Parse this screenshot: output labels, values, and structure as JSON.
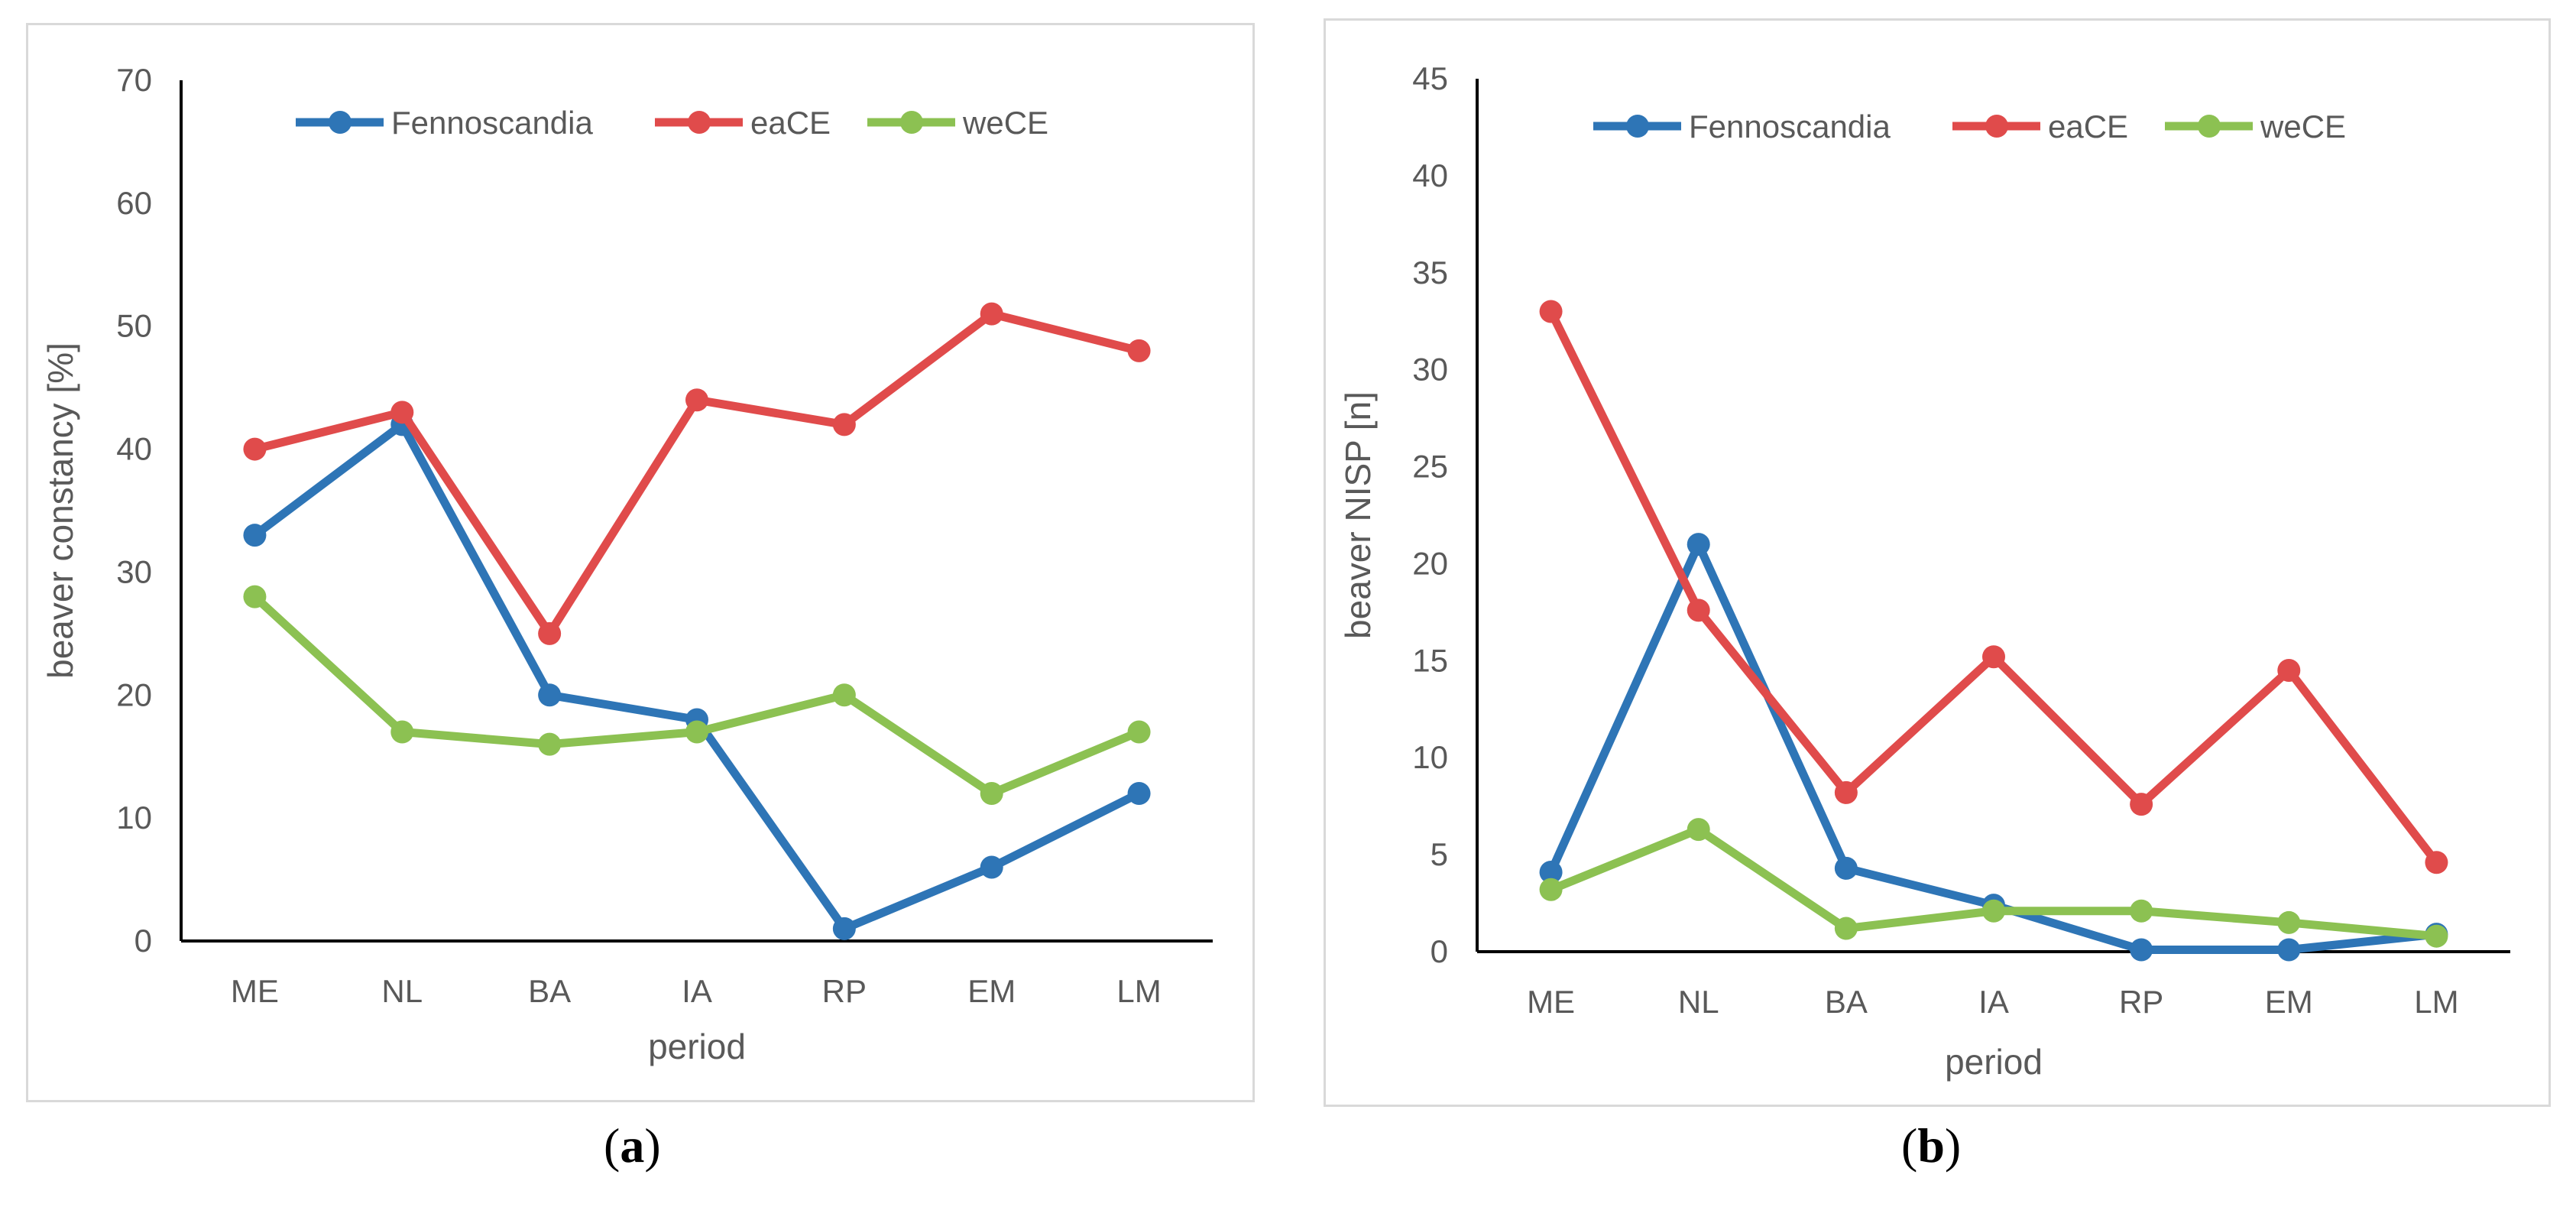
{
  "chart_data": [
    {
      "type": "line",
      "caption": "(a)",
      "caption_letter": "a",
      "categories": [
        "ME",
        "NL",
        "BA",
        "IA",
        "RP",
        "EM",
        "LM"
      ],
      "xlabel": "period",
      "ylabel": "beaver constancy [%]",
      "ylim": [
        0,
        70
      ],
      "yticks": [
        0,
        10,
        20,
        30,
        40,
        50,
        60,
        70
      ],
      "grid": false,
      "legend_position": "top",
      "series": [
        {
          "name": "Fennoscandia",
          "color": "#2e75b6",
          "values": [
            33,
            42,
            20,
            18,
            1,
            6,
            12
          ]
        },
        {
          "name": "eaCE",
          "color": "#e04b4b",
          "values": [
            40,
            43,
            25,
            44,
            42,
            51,
            48
          ]
        },
        {
          "name": "weCE",
          "color": "#8cc152",
          "values": [
            28,
            17,
            16,
            17,
            20,
            12,
            17
          ]
        }
      ]
    },
    {
      "type": "line",
      "caption": "(b)",
      "caption_letter": "b",
      "categories": [
        "ME",
        "NL",
        "BA",
        "IA",
        "RP",
        "EM",
        "LM"
      ],
      "xlabel": "period",
      "ylabel": "beaver NISP [n]",
      "ylim": [
        0,
        45
      ],
      "yticks": [
        0,
        5,
        10,
        15,
        20,
        25,
        30,
        35,
        40,
        45
      ],
      "grid": false,
      "legend_position": "top",
      "series": [
        {
          "name": "Fennoscandia",
          "color": "#2e75b6",
          "values": [
            4.1,
            21,
            4.3,
            2.4,
            0.1,
            0.1,
            0.9
          ]
        },
        {
          "name": "eaCE",
          "color": "#e04b4b",
          "values": [
            33,
            17.6,
            8.2,
            15.2,
            7.6,
            14.5,
            4.6
          ]
        },
        {
          "name": "weCE",
          "color": "#8cc152",
          "values": [
            3.2,
            6.3,
            1.2,
            2.1,
            2.1,
            1.5,
            0.8
          ]
        }
      ]
    }
  ]
}
